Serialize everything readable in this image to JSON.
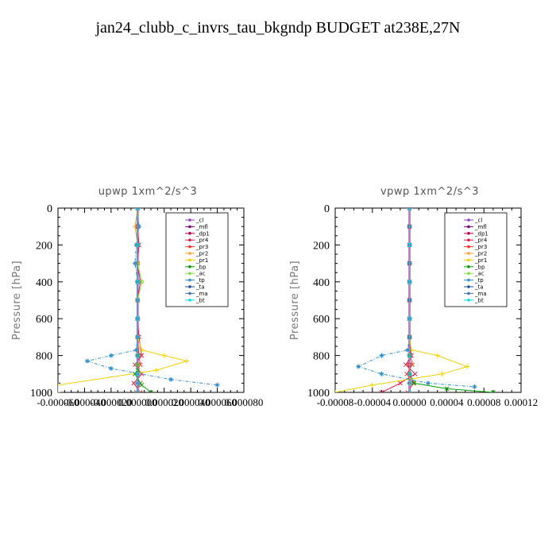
{
  "title": "jan24_clubb_c_invrs_tau_bkgndp  BUDGET at238E,27N",
  "chart_data": [
    {
      "type": "line",
      "title": "upwp   1xm^2/s^3",
      "ylabel": "Pressure [hPa]",
      "xlabel": "",
      "xlim": [
        -6e-05,
        8e-05
      ],
      "ylim": [
        1000,
        0
      ],
      "yticks": [
        "0",
        "200",
        "400",
        "600",
        "800",
        "1000"
      ],
      "xticks": [
        "-0.000060",
        "-0.000040",
        "-0.000020",
        "0.000000",
        "0.000020",
        "0.000040",
        "0.000060",
        "0.000080"
      ],
      "legend": "top-right",
      "series": [
        {
          "name": "_cl",
          "color": "#9040c0",
          "x": [
            0,
            0,
            0,
            0,
            0,
            0,
            0,
            0,
            0,
            0,
            0,
            0,
            0
          ],
          "y": [
            0,
            100,
            200,
            300,
            400,
            500,
            600,
            700,
            800,
            850,
            900,
            950,
            1000
          ]
        },
        {
          "name": "_mfl",
          "color": "#800080",
          "x": [
            0,
            0,
            0,
            0,
            0,
            0,
            0,
            0,
            0,
            0,
            0,
            0,
            0
          ],
          "y": [
            0,
            100,
            200,
            300,
            400,
            500,
            600,
            700,
            800,
            850,
            900,
            950,
            1000
          ]
        },
        {
          "name": "_dp1",
          "color": "#c00040",
          "x": [
            0,
            0,
            0,
            0,
            0,
            0,
            0,
            0,
            0,
            0,
            0,
            0,
            0
          ],
          "y": [
            0,
            100,
            200,
            300,
            400,
            500,
            600,
            700,
            800,
            850,
            900,
            950,
            1000
          ]
        },
        {
          "name": "_pr4",
          "color": "#e02040",
          "x": [
            0,
            0,
            1e-06,
            0,
            2e-06,
            0,
            0,
            1e-06,
            3e-06,
            -2e-06,
            3e-06,
            -3e-06,
            2e-06
          ],
          "y": [
            0,
            100,
            200,
            300,
            400,
            500,
            600,
            700,
            800,
            850,
            900,
            950,
            1000
          ]
        },
        {
          "name": "_pr3",
          "color": "#ff3030",
          "x": [
            0,
            0,
            0,
            0,
            0,
            0,
            0,
            0,
            1e-06,
            2e-06,
            -2e-06,
            2e-06,
            -1e-06
          ],
          "y": [
            0,
            100,
            200,
            300,
            400,
            500,
            600,
            700,
            800,
            850,
            900,
            950,
            1000
          ]
        },
        {
          "name": "_pr2",
          "color": "#ffa030",
          "x": [
            0,
            -2e-06,
            0,
            0,
            0,
            0,
            0,
            0,
            0,
            0,
            0,
            0,
            0
          ],
          "y": [
            0,
            100,
            200,
            300,
            400,
            500,
            600,
            700,
            800,
            850,
            900,
            950,
            1000
          ]
        },
        {
          "name": "_pr1",
          "color": "#f0d000",
          "x": [
            0,
            0,
            0,
            0,
            0,
            0,
            0,
            0,
            3e-06,
            2e-05,
            3.7e-05,
            1.4e-05,
            -6e-05,
            -6e-05
          ],
          "y": [
            0,
            100,
            200,
            300,
            400,
            500,
            600,
            700,
            770,
            800,
            830,
            880,
            960,
            1000
          ]
        },
        {
          "name": "_bp",
          "color": "#00a000",
          "x": [
            0,
            0,
            0,
            0,
            0,
            0,
            0,
            0,
            -2e-06,
            3e-06,
            1e-05
          ],
          "y": [
            0,
            200,
            400,
            600,
            700,
            800,
            850,
            880,
            900,
            960,
            1000
          ]
        },
        {
          "name": "_ac",
          "color": "#80e040",
          "x": [
            0,
            0,
            0,
            3e-06,
            0,
            0,
            0,
            0
          ],
          "y": [
            0,
            200,
            300,
            400,
            500,
            700,
            850,
            1000
          ]
        },
        {
          "name": "_tp",
          "color": "#3090d0",
          "x": [
            0,
            1e-06,
            -1e-06,
            -2e-06,
            0,
            0,
            0,
            0,
            -1e-06,
            -2e-05,
            -3.8e-05,
            -2e-05,
            2.5e-05,
            6e-05
          ],
          "y": [
            0,
            100,
            200,
            300,
            400,
            500,
            600,
            700,
            770,
            800,
            830,
            870,
            930,
            960
          ]
        },
        {
          "name": "_ta",
          "color": "#2050a0",
          "x": [
            0,
            0,
            0,
            0,
            0,
            0,
            0,
            0
          ],
          "y": [
            0,
            200,
            400,
            600,
            800,
            900,
            950,
            1000
          ]
        },
        {
          "name": "_ma",
          "color": "#4070c0",
          "x": [
            0,
            0,
            0,
            0,
            0,
            0,
            0,
            0
          ],
          "y": [
            0,
            200,
            400,
            600,
            800,
            900,
            950,
            1000
          ]
        },
        {
          "name": "_bt",
          "color": "#00e0f0",
          "x": [
            0,
            0,
            0,
            0,
            0,
            0,
            0,
            0
          ],
          "y": [
            0,
            200,
            400,
            600,
            800,
            900,
            950,
            1000
          ]
        }
      ]
    },
    {
      "type": "line",
      "title": "vpwp   1xm^2/s^3",
      "ylabel": "Pressure [hPa]",
      "xlabel": "",
      "xlim": [
        -8e-05,
        0.00012
      ],
      "ylim": [
        1000,
        0
      ],
      "yticks": [
        "0",
        "200",
        "400",
        "600",
        "800",
        "1000"
      ],
      "xticks": [
        "-0.00008",
        "-0.00004",
        "0.00000",
        "0.00004",
        "0.00008",
        "0.00012"
      ],
      "legend": "top-right",
      "series": [
        {
          "name": "_cl",
          "color": "#9040c0",
          "x": [
            0,
            0,
            0,
            0,
            0,
            0,
            0,
            0,
            0,
            0,
            0,
            0,
            0
          ],
          "y": [
            0,
            100,
            200,
            300,
            400,
            500,
            600,
            700,
            800,
            850,
            900,
            950,
            1000
          ]
        },
        {
          "name": "_mfl",
          "color": "#800080",
          "x": [
            0,
            0,
            0,
            0,
            0,
            0,
            0,
            0,
            0,
            0,
            0,
            0,
            0
          ],
          "y": [
            0,
            100,
            200,
            300,
            400,
            500,
            600,
            700,
            800,
            850,
            900,
            950,
            1000
          ]
        },
        {
          "name": "_dp1",
          "color": "#c00040",
          "x": [
            0,
            0,
            0,
            0,
            0,
            0,
            0,
            0,
            0,
            0,
            0,
            0,
            0
          ],
          "y": [
            0,
            100,
            200,
            300,
            400,
            500,
            600,
            700,
            800,
            850,
            900,
            950,
            1000
          ]
        },
        {
          "name": "_pr4",
          "color": "#e02040",
          "x": [
            0,
            0,
            0,
            0,
            0,
            0,
            0,
            0,
            2e-06,
            -4e-06,
            6e-06,
            -1e-05,
            -3e-05
          ],
          "y": [
            0,
            100,
            200,
            300,
            400,
            500,
            600,
            700,
            800,
            850,
            900,
            950,
            1000
          ]
        },
        {
          "name": "_pr3",
          "color": "#ff3030",
          "x": [
            0,
            0,
            0,
            0,
            0,
            0,
            0,
            0,
            1e-06,
            3e-06,
            -3e-06,
            4e-06,
            -2e-06
          ],
          "y": [
            0,
            100,
            200,
            300,
            400,
            500,
            600,
            700,
            800,
            850,
            900,
            950,
            1000
          ]
        },
        {
          "name": "_pr2",
          "color": "#ffa030",
          "x": [
            0,
            0,
            0,
            0,
            0,
            0,
            0,
            0,
            0,
            0,
            0,
            0,
            0
          ],
          "y": [
            0,
            100,
            200,
            300,
            400,
            500,
            600,
            700,
            800,
            850,
            900,
            950,
            1000
          ]
        },
        {
          "name": "_pr1",
          "color": "#f0d000",
          "x": [
            0,
            0,
            0,
            0,
            0,
            0,
            0,
            0,
            2e-06,
            3e-05,
            6.2e-05,
            3.5e-05,
            -4e-05,
            -8e-05
          ],
          "y": [
            0,
            100,
            200,
            300,
            400,
            500,
            600,
            700,
            770,
            800,
            860,
            900,
            960,
            1000
          ]
        },
        {
          "name": "_bp",
          "color": "#00a000",
          "x": [
            0,
            0,
            0,
            0,
            0,
            0,
            0,
            5e-06,
            4e-05,
            9e-05
          ],
          "y": [
            0,
            200,
            400,
            600,
            700,
            800,
            900,
            950,
            980,
            1000
          ]
        },
        {
          "name": "_ac",
          "color": "#80e040",
          "x": [
            0,
            0,
            0,
            0,
            0,
            0,
            0,
            0
          ],
          "y": [
            0,
            200,
            400,
            600,
            800,
            900,
            950,
            1000
          ]
        },
        {
          "name": "_tp",
          "color": "#3090d0",
          "x": [
            0,
            0,
            0,
            0,
            0,
            0,
            0,
            0,
            -2e-06,
            -3e-05,
            -5.5e-05,
            -3e-05,
            2e-05,
            7e-05
          ],
          "y": [
            0,
            100,
            200,
            300,
            400,
            500,
            600,
            700,
            770,
            800,
            860,
            900,
            950,
            970
          ]
        },
        {
          "name": "_ta",
          "color": "#2050a0",
          "x": [
            0,
            0,
            0,
            0,
            0,
            0,
            0,
            0
          ],
          "y": [
            0,
            200,
            400,
            600,
            800,
            900,
            950,
            1000
          ]
        },
        {
          "name": "_ma",
          "color": "#4070c0",
          "x": [
            0,
            0,
            0,
            0,
            0,
            0,
            0,
            0
          ],
          "y": [
            0,
            200,
            400,
            600,
            800,
            900,
            950,
            1000
          ]
        },
        {
          "name": "_bt",
          "color": "#00e0f0",
          "x": [
            0,
            0,
            0,
            0,
            0,
            0,
            0,
            0
          ],
          "y": [
            0,
            200,
            400,
            600,
            800,
            900,
            950,
            1000
          ]
        }
      ]
    }
  ]
}
